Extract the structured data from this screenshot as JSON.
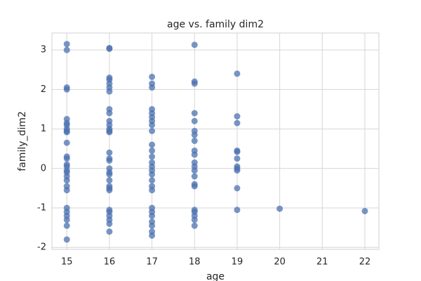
{
  "chart_data": {
    "type": "scatter",
    "title": "age vs. family dim2",
    "xlabel": "age",
    "ylabel": "family_dim2",
    "color": "#4c72b0",
    "x": [
      15,
      15,
      15,
      15,
      15,
      15,
      15,
      15,
      15,
      15,
      15,
      15,
      15,
      15,
      15,
      15,
      15,
      15,
      15,
      15,
      15,
      15,
      15,
      15,
      15,
      15,
      15,
      16,
      16,
      16,
      16,
      16,
      16,
      16,
      16,
      16,
      16,
      16,
      16,
      16,
      16,
      16,
      16,
      16,
      16,
      16,
      16,
      16,
      16,
      16,
      16,
      16,
      16,
      16,
      16,
      16,
      16,
      17,
      17,
      17,
      17,
      17,
      17,
      17,
      17,
      17,
      17,
      17,
      17,
      17,
      17,
      17,
      17,
      17,
      17,
      17,
      17,
      17,
      17,
      17,
      17,
      17,
      17,
      18,
      18,
      18,
      18,
      18,
      18,
      18,
      18,
      18,
      18,
      18,
      18,
      18,
      18,
      18,
      18,
      18,
      18,
      18,
      18,
      18,
      19,
      19,
      19,
      19,
      19,
      19,
      19,
      19,
      19,
      19,
      19,
      20,
      22
    ],
    "values": [
      3.15,
      3.0,
      2.05,
      2.0,
      1.25,
      1.15,
      1.1,
      1.0,
      0.95,
      0.92,
      0.65,
      0.3,
      0.25,
      0.1,
      0.05,
      -0.05,
      -0.1,
      -0.2,
      -0.3,
      -0.45,
      -0.55,
      -1.0,
      -1.1,
      -1.2,
      -1.3,
      -1.45,
      -1.8,
      3.05,
      3.03,
      2.3,
      2.25,
      2.15,
      2.05,
      1.95,
      1.5,
      1.4,
      1.2,
      1.1,
      1.0,
      0.95,
      0.92,
      0.4,
      0.25,
      0.2,
      0.0,
      -0.1,
      -0.15,
      -0.3,
      -0.45,
      -0.5,
      -0.55,
      -1.05,
      -1.1,
      -1.2,
      -1.3,
      -1.4,
      -1.6,
      2.32,
      2.15,
      2.05,
      1.5,
      1.4,
      1.3,
      1.2,
      1.1,
      0.95,
      0.6,
      0.45,
      0.3,
      0.15,
      0.05,
      -0.05,
      -0.15,
      -0.3,
      -0.45,
      -0.55,
      -1.0,
      -1.1,
      -1.2,
      -1.35,
      -1.45,
      -1.6,
      -1.7,
      3.13,
      2.2,
      2.15,
      1.4,
      1.2,
      0.95,
      0.85,
      0.7,
      0.45,
      0.35,
      0.15,
      0.05,
      -0.05,
      -0.2,
      -0.4,
      -0.45,
      -1.05,
      -1.1,
      -1.2,
      -1.3,
      -1.45,
      2.4,
      1.32,
      1.15,
      0.45,
      0.42,
      0.25,
      0.05,
      0.0,
      -0.05,
      -0.5,
      -1.05,
      -1.02,
      -1.08
    ],
    "xlim": [
      14.65,
      22.33
    ],
    "xticks": [
      15,
      16,
      17,
      18,
      19,
      20,
      21,
      22
    ],
    "ylim": [
      -2.05,
      3.43
    ],
    "yticks": [
      -2,
      -1,
      0,
      1,
      2,
      3
    ],
    "grid": true
  }
}
